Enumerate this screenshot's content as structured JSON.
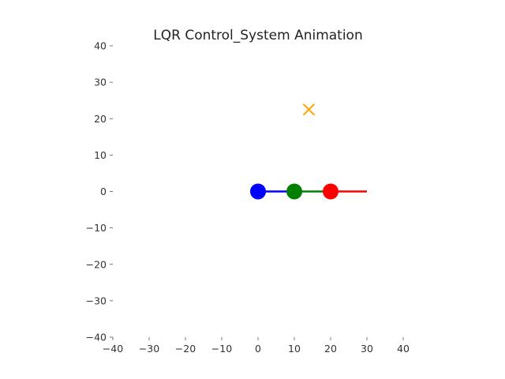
{
  "chart_data": {
    "type": "scatter",
    "title": "LQR Control_System Animation",
    "xlabel": "",
    "ylabel": "",
    "xlim": [
      -40,
      40
    ],
    "ylim": [
      -40,
      40
    ],
    "xticks": [
      -40,
      -30,
      -20,
      -10,
      0,
      10,
      20,
      30,
      40
    ],
    "yticks": [
      -40,
      -30,
      -20,
      -10,
      0,
      10,
      20,
      30,
      40
    ],
    "xtick_labels": [
      "−40",
      "−30",
      "−20",
      "−10",
      "0",
      "10",
      "20",
      "30",
      "40"
    ],
    "ytick_labels": [
      "−40",
      "−30",
      "−20",
      "−10",
      "0",
      "10",
      "20",
      "30",
      "40"
    ],
    "grid": false,
    "frame": false,
    "agents": [
      {
        "color": "#0000ff",
        "position": [
          0,
          0
        ],
        "heading_end": [
          10,
          0
        ]
      },
      {
        "color": "#008000",
        "position": [
          10,
          0
        ],
        "heading_end": [
          20,
          0
        ]
      },
      {
        "color": "#ff0000",
        "position": [
          20,
          0
        ],
        "heading_end": [
          30,
          0
        ]
      }
    ],
    "target": {
      "marker": "x",
      "color": "#ffa500",
      "position": [
        14,
        22.5
      ]
    }
  }
}
